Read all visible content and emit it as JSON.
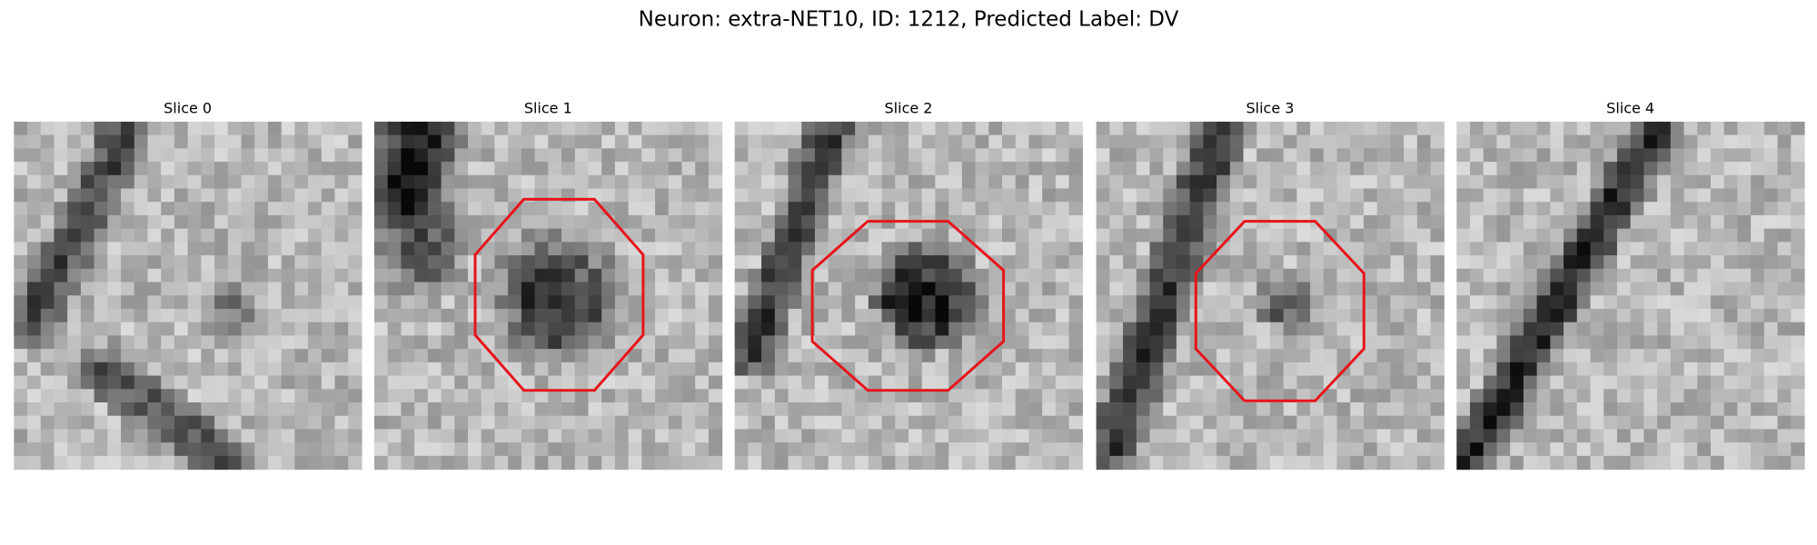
{
  "title": "Neuron: extra-NET10, ID: 1212, Predicted Label: DV",
  "slices": [
    {
      "label": "Slice 0"
    },
    {
      "label": "Slice 1"
    },
    {
      "label": "Slice 2"
    },
    {
      "label": "Slice 3"
    },
    {
      "label": "Slice 4"
    }
  ]
}
